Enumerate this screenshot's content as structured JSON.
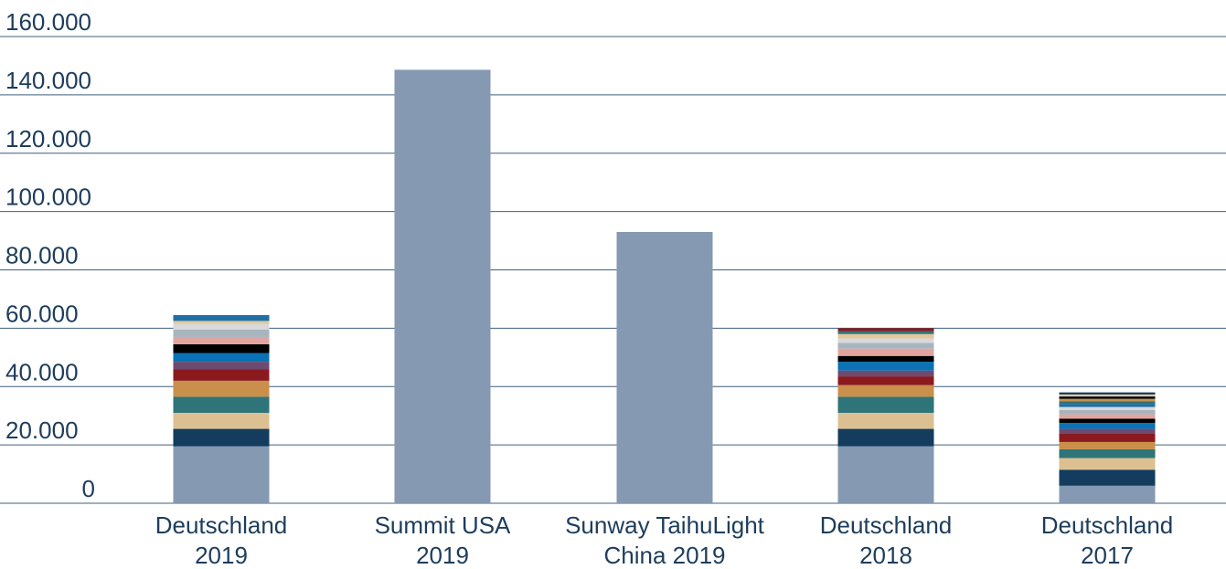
{
  "chart_data": {
    "type": "bar",
    "stacked": true,
    "title": "",
    "xlabel": "",
    "ylabel": "",
    "ylim": [
      0,
      160000
    ],
    "yticks": [
      0,
      20000,
      40000,
      60000,
      80000,
      100000,
      120000,
      140000,
      160000
    ],
    "ytick_labels": [
      "0",
      "20.000",
      "40.000",
      "60.000",
      "80.000",
      "100.000",
      "120.000",
      "140.000",
      "160.000"
    ],
    "grid": true,
    "legend": "none",
    "categories": [
      {
        "line1": "Deutschland",
        "line2": "2019"
      },
      {
        "line1": "Summit USA",
        "line2": "2019"
      },
      {
        "line1": "Sunway TaihuLight",
        "line2": "China 2019"
      },
      {
        "line1": "Deutschland",
        "line2": "2018"
      },
      {
        "line1": "Deutschland",
        "line2": "2017"
      }
    ],
    "stacks": [
      {
        "segments": [
          {
            "value": 19500,
            "color": "#8599b2"
          },
          {
            "value": 6000,
            "color": "#133c5e"
          },
          {
            "value": 5500,
            "color": "#dcc092"
          },
          {
            "value": 5500,
            "color": "#2e7479"
          },
          {
            "value": 5500,
            "color": "#c98f4b"
          },
          {
            "value": 4000,
            "color": "#8b1a1f"
          },
          {
            "value": 2500,
            "color": "#6d4a70"
          },
          {
            "value": 3000,
            "color": "#0a72b5"
          },
          {
            "value": 3000,
            "color": "#000000"
          },
          {
            "value": 2500,
            "color": "#e2a49e"
          },
          {
            "value": 2500,
            "color": "#a8b5bf"
          },
          {
            "value": 2000,
            "color": "#d7d9db"
          },
          {
            "value": 1000,
            "color": "#e3c79d"
          },
          {
            "value": 2000,
            "color": "#1f6fa5"
          }
        ]
      },
      {
        "segments": [
          {
            "value": 148600,
            "color": "#8599b2"
          }
        ]
      },
      {
        "segments": [
          {
            "value": 93000,
            "color": "#8599b2"
          }
        ]
      },
      {
        "segments": [
          {
            "value": 19500,
            "color": "#8599b2"
          },
          {
            "value": 6000,
            "color": "#133c5e"
          },
          {
            "value": 5500,
            "color": "#dcc092"
          },
          {
            "value": 5500,
            "color": "#2e7479"
          },
          {
            "value": 4000,
            "color": "#c98f4b"
          },
          {
            "value": 3000,
            "color": "#8b1a1f"
          },
          {
            "value": 2000,
            "color": "#6d4a70"
          },
          {
            "value": 3000,
            "color": "#0a72b5"
          },
          {
            "value": 2000,
            "color": "#000000"
          },
          {
            "value": 2500,
            "color": "#e2a49e"
          },
          {
            "value": 2000,
            "color": "#a8b5bf"
          },
          {
            "value": 1500,
            "color": "#d7d9db"
          },
          {
            "value": 1500,
            "color": "#e3c79d"
          },
          {
            "value": 1000,
            "color": "#2e7479"
          },
          {
            "value": 1000,
            "color": "#8b1a1f"
          }
        ]
      },
      {
        "segments": [
          {
            "value": 6000,
            "color": "#8599b2"
          },
          {
            "value": 5500,
            "color": "#133c5e"
          },
          {
            "value": 4000,
            "color": "#dcc092"
          },
          {
            "value": 3000,
            "color": "#2e7479"
          },
          {
            "value": 2500,
            "color": "#c98f4b"
          },
          {
            "value": 3000,
            "color": "#8b1a1f"
          },
          {
            "value": 1500,
            "color": "#6d4a70"
          },
          {
            "value": 2000,
            "color": "#0a72b5"
          },
          {
            "value": 1500,
            "color": "#000000"
          },
          {
            "value": 1500,
            "color": "#e2a49e"
          },
          {
            "value": 1500,
            "color": "#a8b5bf"
          },
          {
            "value": 1000,
            "color": "#d7d9db"
          },
          {
            "value": 1000,
            "color": "#1f6fa5"
          },
          {
            "value": 1000,
            "color": "#2e7479"
          },
          {
            "value": 800,
            "color": "#c98f4b"
          },
          {
            "value": 800,
            "color": "#000000"
          },
          {
            "value": 700,
            "color": "#e3c79d"
          },
          {
            "value": 700,
            "color": "#133c5e"
          }
        ]
      }
    ]
  }
}
